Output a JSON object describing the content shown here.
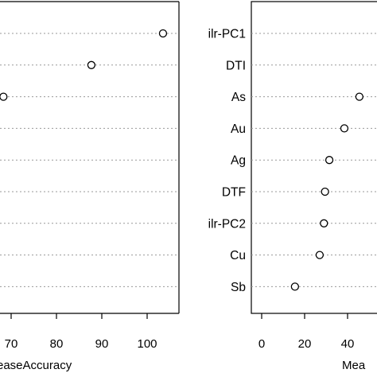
{
  "chart_data": [
    {
      "type": "scatter",
      "style": "dotchart",
      "xlabel_visible": "easeAccuracy",
      "ylabel": "",
      "xlim": [
        64,
        106
      ],
      "xticks": [
        70,
        80,
        90,
        100
      ],
      "grid": true,
      "categories_visible": false,
      "points": [
        {
          "rank": 1,
          "x": 103.5
        },
        {
          "rank": 2,
          "x": 87.7
        },
        {
          "rank": 3,
          "x": 68.3
        }
      ]
    },
    {
      "type": "scatter",
      "style": "dotchart",
      "xlabel_visible": "Mea",
      "ylabel": "",
      "xlim": [
        -4,
        52
      ],
      "xticks": [
        0,
        20,
        40
      ],
      "grid": true,
      "categories": [
        "ilr-PC1",
        "DTI",
        "As",
        "Au",
        "Ag",
        "DTF",
        "ilr-PC2",
        "Cu",
        "Sb"
      ],
      "values": [
        null,
        null,
        45.5,
        38.5,
        31.5,
        29.5,
        29.0,
        27.0,
        15.5
      ]
    }
  ]
}
